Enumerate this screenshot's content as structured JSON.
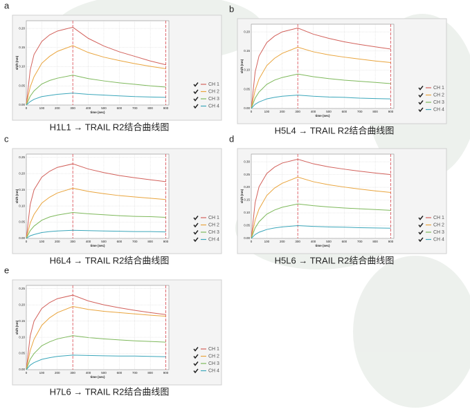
{
  "chart_data": [
    {
      "type": "line",
      "panel_label": "a",
      "caption": "H1L1 → TRAIL R2结合曲线图",
      "x_label": "time (sec)",
      "y_label": "shift (nm)",
      "x": [
        0,
        25,
        50,
        100,
        150,
        200,
        300,
        400,
        500,
        600,
        700,
        800,
        900
      ],
      "xlim": [
        0,
        920
      ],
      "xticks": [
        0,
        100,
        200,
        300,
        400,
        500,
        600,
        700,
        800,
        900
      ],
      "ylim": [
        0,
        0.22
      ],
      "yticks": [
        {
          "value": 0,
          "label": "0.00"
        },
        0.05,
        {
          "value": 0.1,
          "label": "0.10"
        },
        0.15,
        {
          "value": 0.2,
          "label": "0.20"
        }
      ],
      "markers": [
        300,
        900
      ],
      "grid": true,
      "series": [
        {
          "name": "CH 1",
          "color": "#d2605a",
          "values": [
            0,
            0.091,
            0.132,
            0.166,
            0.183,
            0.193,
            0.203,
            0.174,
            0.154,
            0.139,
            0.127,
            0.115,
            0.105
          ]
        },
        {
          "name": "CH 2",
          "color": "#e9a43c",
          "values": [
            0,
            0.047,
            0.074,
            0.109,
            0.127,
            0.14,
            0.155,
            0.137,
            0.125,
            0.116,
            0.108,
            0.101,
            0.095
          ]
        },
        {
          "name": "CH 3",
          "color": "#7db85a",
          "values": [
            0,
            0.023,
            0.037,
            0.055,
            0.064,
            0.07,
            0.078,
            0.069,
            0.063,
            0.058,
            0.054,
            0.05,
            0.047
          ]
        },
        {
          "name": "CH 4",
          "color": "#3aa6ba",
          "values": [
            0,
            0.009,
            0.015,
            0.022,
            0.025,
            0.028,
            0.031,
            0.028,
            0.026,
            0.024,
            0.022,
            0.021,
            0.02
          ]
        }
      ]
    },
    {
      "type": "line",
      "panel_label": "b",
      "caption": "H5L4 → TRAIL R2结合曲线图",
      "x_label": "time (sec)",
      "y_label": "shift (nm)",
      "x": [
        0,
        25,
        50,
        100,
        150,
        200,
        300,
        400,
        500,
        600,
        700,
        800,
        900
      ],
      "xlim": [
        0,
        920
      ],
      "xticks": [
        0,
        100,
        200,
        300,
        400,
        500,
        600,
        700,
        800,
        900
      ],
      "ylim": [
        0,
        0.22
      ],
      "yticks": [
        {
          "value": 0,
          "label": "0.00"
        },
        0.05,
        {
          "value": 0.1,
          "label": "0.10"
        },
        0.15,
        {
          "value": 0.2,
          "label": "0.20"
        }
      ],
      "markers": [
        300,
        900
      ],
      "grid": true,
      "series": [
        {
          "name": "CH 1",
          "color": "#d2605a",
          "values": [
            0,
            0.095,
            0.137,
            0.172,
            0.189,
            0.2,
            0.21,
            0.194,
            0.183,
            0.174,
            0.167,
            0.161,
            0.155
          ]
        },
        {
          "name": "CH 2",
          "color": "#e9a43c",
          "values": [
            0,
            0.048,
            0.077,
            0.112,
            0.131,
            0.144,
            0.16,
            0.148,
            0.14,
            0.134,
            0.129,
            0.124,
            0.12
          ]
        },
        {
          "name": "CH 3",
          "color": "#7db85a",
          "values": [
            0,
            0.027,
            0.043,
            0.063,
            0.074,
            0.081,
            0.09,
            0.083,
            0.078,
            0.074,
            0.071,
            0.068,
            0.065
          ]
        },
        {
          "name": "CH 4",
          "color": "#3aa6ba",
          "values": [
            0,
            0.011,
            0.017,
            0.025,
            0.029,
            0.032,
            0.035,
            0.032,
            0.03,
            0.029,
            0.027,
            0.026,
            0.025
          ]
        }
      ]
    },
    {
      "type": "line",
      "panel_label": "c",
      "caption": "H6L4 → TRAIL R2结合曲线图",
      "x_label": "time (sec)",
      "y_label": "shift (nm)",
      "x": [
        0,
        25,
        50,
        100,
        150,
        200,
        300,
        400,
        500,
        600,
        700,
        800,
        900
      ],
      "xlim": [
        0,
        920
      ],
      "xticks": [
        0,
        100,
        200,
        300,
        400,
        500,
        600,
        700,
        800,
        900
      ],
      "ylim": [
        0,
        0.26
      ],
      "yticks": [
        {
          "value": 0,
          "label": "0.00"
        },
        0.05,
        {
          "value": 0.1,
          "label": "0.10"
        },
        0.15,
        {
          "value": 0.2,
          "label": "0.20"
        },
        0.25
      ],
      "markers": [
        300,
        900
      ],
      "grid": true,
      "series": [
        {
          "name": "CH 1",
          "color": "#d2605a",
          "values": [
            0,
            0.104,
            0.15,
            0.189,
            0.207,
            0.219,
            0.23,
            0.214,
            0.203,
            0.194,
            0.187,
            0.181,
            0.175
          ]
        },
        {
          "name": "CH 2",
          "color": "#e9a43c",
          "values": [
            0,
            0.047,
            0.074,
            0.109,
            0.127,
            0.14,
            0.155,
            0.145,
            0.138,
            0.132,
            0.128,
            0.124,
            0.12
          ]
        },
        {
          "name": "CH 3",
          "color": "#7db85a",
          "values": [
            0,
            0.024,
            0.038,
            0.056,
            0.066,
            0.072,
            0.08,
            0.076,
            0.073,
            0.07,
            0.068,
            0.067,
            0.065
          ]
        },
        {
          "name": "CH 4",
          "color": "#3aa6ba",
          "values": [
            0,
            0.008,
            0.012,
            0.018,
            0.021,
            0.023,
            0.025,
            0.024,
            0.023,
            0.022,
            0.021,
            0.021,
            0.02
          ]
        }
      ]
    },
    {
      "type": "line",
      "panel_label": "d",
      "caption": "H5L6 → TRAIL R2结合曲线图",
      "x_label": "time (sec)",
      "y_label": "shift (nm)",
      "x": [
        0,
        25,
        50,
        100,
        150,
        200,
        300,
        400,
        500,
        600,
        700,
        800,
        900
      ],
      "xlim": [
        0,
        920
      ],
      "xticks": [
        0,
        100,
        200,
        300,
        400,
        500,
        600,
        700,
        800,
        900
      ],
      "ylim": [
        0,
        0.33
      ],
      "yticks": [
        {
          "value": 0,
          "label": "0.00"
        },
        0.05,
        {
          "value": 0.1,
          "label": "0.10"
        },
        0.15,
        {
          "value": 0.2,
          "label": "0.20"
        },
        0.25,
        {
          "value": 0.3,
          "label": "0.30"
        }
      ],
      "markers": [
        300,
        900
      ],
      "grid": true,
      "series": [
        {
          "name": "CH 1",
          "color": "#d2605a",
          "values": [
            0,
            0.14,
            0.202,
            0.254,
            0.279,
            0.295,
            0.31,
            0.292,
            0.28,
            0.271,
            0.263,
            0.256,
            0.25
          ]
        },
        {
          "name": "CH 2",
          "color": "#e9a43c",
          "values": [
            0,
            0.072,
            0.115,
            0.168,
            0.197,
            0.216,
            0.24,
            0.222,
            0.21,
            0.201,
            0.193,
            0.186,
            0.18
          ]
        },
        {
          "name": "CH 3",
          "color": "#7db85a",
          "values": [
            0,
            0.041,
            0.065,
            0.095,
            0.111,
            0.122,
            0.135,
            0.128,
            0.123,
            0.119,
            0.116,
            0.113,
            0.11
          ]
        },
        {
          "name": "CH 4",
          "color": "#3aa6ba",
          "values": [
            0,
            0.015,
            0.024,
            0.035,
            0.041,
            0.045,
            0.05,
            0.047,
            0.045,
            0.044,
            0.042,
            0.041,
            0.04
          ]
        }
      ]
    },
    {
      "type": "line",
      "panel_label": "e",
      "caption": "H7L6 → TRAIL R2结合曲线图",
      "x_label": "time (sec)",
      "y_label": "shift (nm)",
      "x": [
        0,
        25,
        50,
        100,
        150,
        200,
        300,
        400,
        500,
        600,
        700,
        800,
        900
      ],
      "xlim": [
        0,
        920
      ],
      "xticks": [
        0,
        100,
        200,
        300,
        400,
        500,
        600,
        700,
        800,
        900
      ],
      "ylim": [
        0,
        0.26
      ],
      "yticks": [
        {
          "value": 0,
          "label": "0.00"
        },
        0.05,
        {
          "value": 0.1,
          "label": "0.10"
        },
        0.15,
        {
          "value": 0.2,
          "label": "0.20"
        },
        0.25
      ],
      "markers": [
        300,
        900
      ],
      "grid": true,
      "series": [
        {
          "name": "CH 1",
          "color": "#d2605a",
          "values": [
            0,
            0.104,
            0.15,
            0.189,
            0.207,
            0.219,
            0.23,
            0.212,
            0.2,
            0.191,
            0.183,
            0.176,
            0.17
          ]
        },
        {
          "name": "CH 2",
          "color": "#e9a43c",
          "values": [
            0,
            0.059,
            0.094,
            0.137,
            0.16,
            0.176,
            0.195,
            0.186,
            0.18,
            0.176,
            0.172,
            0.168,
            0.165
          ]
        },
        {
          "name": "CH 3",
          "color": "#7db85a",
          "values": [
            0,
            0.032,
            0.05,
            0.074,
            0.086,
            0.095,
            0.105,
            0.099,
            0.095,
            0.092,
            0.089,
            0.087,
            0.085
          ]
        },
        {
          "name": "CH 4",
          "color": "#3aa6ba",
          "values": [
            0,
            0.014,
            0.022,
            0.032,
            0.037,
            0.041,
            0.045,
            0.044,
            0.043,
            0.042,
            0.042,
            0.041,
            0.04
          ]
        }
      ]
    }
  ]
}
